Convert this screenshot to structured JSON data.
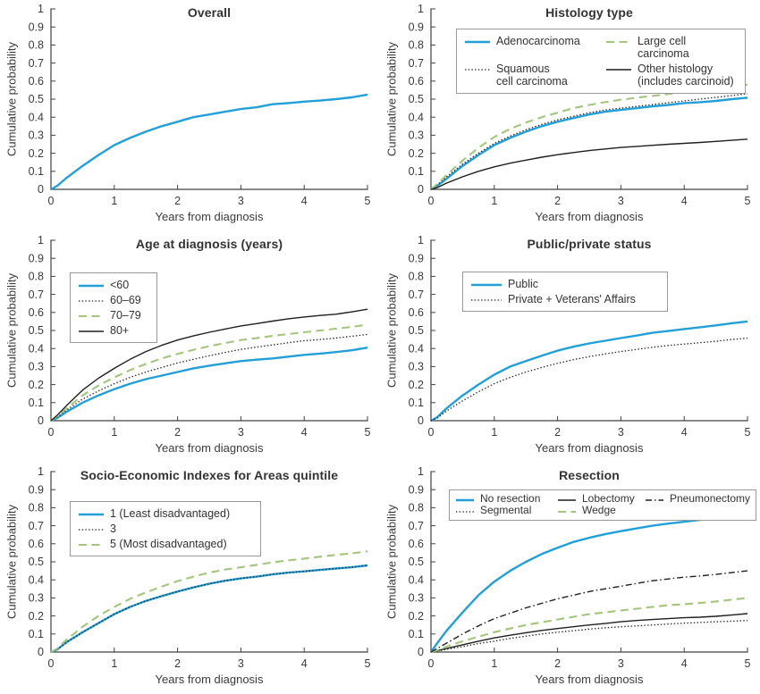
{
  "figure": {
    "background": "#ffffff",
    "text_color": "#3b3b3b",
    "axis_color": "#404040",
    "accent_blue": "#239fd8",
    "accent_green": "#a3c57e",
    "curve_black": "#1f1f1f"
  },
  "axes": {
    "xlabel": "Years from diagnosis",
    "ylabel": "Cumulative probability",
    "x_ticks": [
      0,
      1,
      2,
      3,
      4,
      5
    ],
    "y_ticks": [
      0,
      0.1,
      0.2,
      0.3,
      0.4,
      0.5,
      0.6,
      0.7,
      0.8,
      0.9,
      1
    ],
    "xlim": [
      0,
      5
    ],
    "ylim": [
      0,
      1
    ],
    "grid": "off",
    "tick_direction": "in"
  },
  "line_styles": {
    "solid_blue": {
      "color": "#239fd8",
      "width": 2.4,
      "dash": ""
    },
    "dotted_black": {
      "color": "#1f1f1f",
      "width": 1.3,
      "dash": "1.4 2.3"
    },
    "dashed_green": {
      "color": "#a3c57e",
      "width": 2.1,
      "dash": "9 5.5"
    },
    "solid_black": {
      "color": "#1f1f1f",
      "width": 1.4,
      "dash": ""
    },
    "dashdot_black": {
      "color": "#1f1f1f",
      "width": 1.4,
      "dash": "7 3 1.5 3"
    }
  },
  "chart_data": [
    {
      "type": "line",
      "title": "Overall",
      "xlabel": "Years from diagnosis",
      "ylabel": "Cumulative probability",
      "xlim": [
        0,
        5
      ],
      "ylim": [
        0,
        1
      ],
      "legend_position": "none",
      "x": [
        0,
        0.1,
        0.25,
        0.5,
        0.75,
        1,
        1.25,
        1.5,
        1.75,
        2,
        2.25,
        2.5,
        2.75,
        3,
        3.25,
        3.5,
        3.75,
        4,
        4.25,
        4.5,
        4.75,
        5
      ],
      "series": [
        {
          "name": "Overall",
          "style": "solid_blue",
          "values": [
            0,
            0.02,
            0.065,
            0.13,
            0.19,
            0.245,
            0.285,
            0.32,
            0.35,
            0.375,
            0.4,
            0.415,
            0.43,
            0.445,
            0.455,
            0.472,
            0.478,
            0.486,
            0.492,
            0.5,
            0.51,
            0.525
          ]
        }
      ],
      "legend_items": []
    },
    {
      "type": "line",
      "title": "Histology type",
      "xlabel": "Years from diagnosis",
      "ylabel": "Cumulative probability",
      "xlim": [
        0,
        5
      ],
      "ylim": [
        0,
        1
      ],
      "legend_position": "upper center, boxed, 2 columns",
      "x": [
        0,
        0.1,
        0.25,
        0.5,
        0.75,
        1,
        1.25,
        1.5,
        1.75,
        2,
        2.25,
        2.5,
        2.75,
        3,
        3.25,
        3.5,
        3.75,
        4,
        4.25,
        4.5,
        4.75,
        5
      ],
      "series": [
        {
          "name": "Adenocarcinoma",
          "style": "solid_blue",
          "values": [
            0,
            0.02,
            0.06,
            0.13,
            0.19,
            0.245,
            0.285,
            0.32,
            0.35,
            0.375,
            0.395,
            0.415,
            0.43,
            0.44,
            0.45,
            0.46,
            0.468,
            0.478,
            0.483,
            0.49,
            0.5,
            0.508
          ]
        },
        {
          "name": "Squamous cell carcinoma",
          "style": "dotted_black",
          "values": [
            0,
            0.025,
            0.07,
            0.14,
            0.2,
            0.255,
            0.295,
            0.33,
            0.36,
            0.385,
            0.405,
            0.425,
            0.44,
            0.45,
            0.46,
            0.47,
            0.48,
            0.49,
            0.5,
            0.51,
            0.52,
            0.53
          ]
        },
        {
          "name": "Large cell carcinoma",
          "style": "dashed_green",
          "values": [
            0,
            0.03,
            0.08,
            0.16,
            0.23,
            0.29,
            0.335,
            0.37,
            0.4,
            0.425,
            0.45,
            0.468,
            0.483,
            0.497,
            0.508,
            0.518,
            0.528,
            0.54,
            0.55,
            0.56,
            0.57,
            0.58
          ]
        },
        {
          "name": "Other histology (includes carcinoid)",
          "style": "solid_black",
          "values": [
            0,
            0.01,
            0.035,
            0.07,
            0.1,
            0.125,
            0.145,
            0.162,
            0.178,
            0.192,
            0.204,
            0.215,
            0.224,
            0.232,
            0.238,
            0.244,
            0.25,
            0.255,
            0.26,
            0.266,
            0.272,
            0.278
          ]
        }
      ],
      "legend_items": [
        {
          "label": "Adenocarcinoma",
          "style": "solid_blue"
        },
        {
          "label": "Large cell carcinoma",
          "style": "dashed_green"
        },
        {
          "label": "Squamous\ncell carcinoma",
          "style": "dotted_black"
        },
        {
          "label": "Other histology\n(includes carcinoid)",
          "style": "solid_black"
        }
      ]
    },
    {
      "type": "line",
      "title": "Age at diagnosis (years)",
      "xlabel": "Years from diagnosis",
      "ylabel": "Cumulative probability",
      "xlim": [
        0,
        5
      ],
      "ylim": [
        0,
        1
      ],
      "legend_position": "upper left, boxed, 1 column",
      "x": [
        0,
        0.1,
        0.25,
        0.5,
        0.75,
        1,
        1.25,
        1.5,
        1.75,
        2,
        2.25,
        2.5,
        2.75,
        3,
        3.25,
        3.5,
        3.75,
        4,
        4.25,
        4.5,
        4.75,
        5
      ],
      "series": [
        {
          "name": "<60",
          "style": "solid_blue",
          "values": [
            0,
            0.015,
            0.05,
            0.1,
            0.14,
            0.175,
            0.205,
            0.23,
            0.25,
            0.27,
            0.29,
            0.305,
            0.318,
            0.33,
            0.338,
            0.345,
            0.355,
            0.365,
            0.372,
            0.38,
            0.39,
            0.405
          ]
        },
        {
          "name": "60–69",
          "style": "dotted_black",
          "values": [
            0,
            0.02,
            0.06,
            0.12,
            0.165,
            0.205,
            0.24,
            0.27,
            0.295,
            0.32,
            0.34,
            0.36,
            0.378,
            0.395,
            0.408,
            0.42,
            0.432,
            0.443,
            0.45,
            0.458,
            0.468,
            0.478
          ]
        },
        {
          "name": "70–79",
          "style": "dashed_green",
          "values": [
            0,
            0.025,
            0.07,
            0.14,
            0.195,
            0.24,
            0.28,
            0.315,
            0.345,
            0.37,
            0.393,
            0.413,
            0.43,
            0.447,
            0.458,
            0.47,
            0.48,
            0.49,
            0.5,
            0.51,
            0.52,
            0.532
          ]
        },
        {
          "name": "80+",
          "style": "solid_black",
          "values": [
            0,
            0.03,
            0.085,
            0.17,
            0.235,
            0.29,
            0.34,
            0.383,
            0.418,
            0.447,
            0.47,
            0.49,
            0.508,
            0.525,
            0.538,
            0.552,
            0.565,
            0.575,
            0.583,
            0.59,
            0.603,
            0.618
          ]
        }
      ],
      "legend_items": [
        {
          "label": "<60",
          "style": "solid_blue"
        },
        {
          "label": "60–69",
          "style": "dotted_black"
        },
        {
          "label": "70–79",
          "style": "dashed_green"
        },
        {
          "label": "80+",
          "style": "solid_black"
        }
      ]
    },
    {
      "type": "line",
      "title": "Public/private status",
      "xlabel": "Years from diagnosis",
      "ylabel": "Cumulative probability",
      "xlim": [
        0,
        5
      ],
      "ylim": [
        0,
        1
      ],
      "legend_position": "upper left, boxed, 1 column",
      "x": [
        0,
        0.1,
        0.25,
        0.5,
        0.75,
        1,
        1.25,
        1.5,
        1.75,
        2,
        2.25,
        2.5,
        2.75,
        3,
        3.25,
        3.5,
        3.75,
        4,
        4.25,
        4.5,
        4.75,
        5
      ],
      "series": [
        {
          "name": "Public",
          "style": "solid_blue",
          "values": [
            0,
            0.02,
            0.07,
            0.14,
            0.2,
            0.255,
            0.3,
            0.33,
            0.36,
            0.388,
            0.41,
            0.428,
            0.443,
            0.458,
            0.472,
            0.487,
            0.497,
            0.508,
            0.518,
            0.528,
            0.54,
            0.55
          ]
        },
        {
          "name": "Private + Veterans' Affairs",
          "style": "dotted_black",
          "values": [
            0,
            0.015,
            0.055,
            0.11,
            0.16,
            0.205,
            0.24,
            0.27,
            0.295,
            0.318,
            0.338,
            0.355,
            0.37,
            0.383,
            0.395,
            0.407,
            0.417,
            0.425,
            0.432,
            0.44,
            0.45,
            0.458
          ]
        }
      ],
      "legend_items": [
        {
          "label": "Public",
          "style": "solid_blue"
        },
        {
          "label": "Private + Veterans' Affairs",
          "style": "dotted_black"
        }
      ]
    },
    {
      "type": "line",
      "title": "Socio-Economic Indexes for Areas quintile",
      "xlabel": "Years from diagnosis",
      "ylabel": "Cumulative probability",
      "xlim": [
        0,
        5
      ],
      "ylim": [
        0,
        1
      ],
      "legend_position": "upper left, boxed, 1 column",
      "x": [
        0,
        0.1,
        0.25,
        0.5,
        0.75,
        1,
        1.25,
        1.5,
        1.75,
        2,
        2.25,
        2.5,
        2.75,
        3,
        3.25,
        3.5,
        3.75,
        4,
        4.25,
        4.5,
        4.75,
        5
      ],
      "series": [
        {
          "name": "1 (Least disadvantaged)",
          "style": "solid_blue",
          "values": [
            0,
            0.015,
            0.055,
            0.11,
            0.16,
            0.21,
            0.25,
            0.283,
            0.31,
            0.335,
            0.358,
            0.378,
            0.395,
            0.408,
            0.418,
            0.43,
            0.44,
            0.447,
            0.455,
            0.463,
            0.47,
            0.48
          ]
        },
        {
          "name": "3",
          "style": "dotted_black",
          "values": [
            0,
            0.015,
            0.055,
            0.11,
            0.16,
            0.21,
            0.25,
            0.283,
            0.31,
            0.335,
            0.358,
            0.378,
            0.395,
            0.408,
            0.418,
            0.43,
            0.44,
            0.447,
            0.455,
            0.463,
            0.47,
            0.48
          ]
        },
        {
          "name": "5 (Most disadvantaged)",
          "style": "dashed_green",
          "values": [
            0,
            0.02,
            0.07,
            0.14,
            0.2,
            0.25,
            0.295,
            0.33,
            0.363,
            0.393,
            0.418,
            0.44,
            0.457,
            0.47,
            0.483,
            0.497,
            0.508,
            0.518,
            0.528,
            0.538,
            0.547,
            0.558
          ]
        }
      ],
      "legend_items": [
        {
          "label": "1 (Least disadvantaged)",
          "style": "solid_blue"
        },
        {
          "label": "3",
          "style": "dotted_black"
        },
        {
          "label": "5 (Most disadvantaged)",
          "style": "dashed_green"
        }
      ]
    },
    {
      "type": "line",
      "title": "Resection",
      "xlabel": "Years from diagnosis",
      "ylabel": "Cumulative probability",
      "xlim": [
        0,
        5
      ],
      "ylim": [
        0,
        1
      ],
      "legend_position": "upper center, boxed, 3 columns",
      "x": [
        0,
        0.1,
        0.25,
        0.5,
        0.75,
        1,
        1.25,
        1.5,
        1.75,
        2,
        2.25,
        2.5,
        2.75,
        3,
        3.25,
        3.5,
        3.75,
        4,
        4.25,
        4.5,
        4.75,
        5
      ],
      "series": [
        {
          "name": "No resection",
          "style": "solid_blue",
          "values": [
            0,
            0.05,
            0.12,
            0.22,
            0.315,
            0.39,
            0.45,
            0.5,
            0.543,
            0.578,
            0.61,
            0.633,
            0.653,
            0.67,
            0.685,
            0.7,
            0.712,
            0.722,
            0.732,
            0.74,
            0.748,
            0.755
          ]
        },
        {
          "name": "Segmental",
          "style": "dotted_black",
          "values": [
            0,
            0.006,
            0.015,
            0.03,
            0.047,
            0.06,
            0.075,
            0.088,
            0.1,
            0.11,
            0.118,
            0.127,
            0.134,
            0.14,
            0.145,
            0.15,
            0.155,
            0.16,
            0.164,
            0.168,
            0.171,
            0.175
          ]
        },
        {
          "name": "Lobectomy",
          "style": "solid_black",
          "values": [
            0,
            0.008,
            0.02,
            0.04,
            0.06,
            0.078,
            0.093,
            0.107,
            0.12,
            0.13,
            0.14,
            0.15,
            0.158,
            0.168,
            0.175,
            0.18,
            0.185,
            0.19,
            0.193,
            0.198,
            0.205,
            0.213
          ]
        },
        {
          "name": "Wedge",
          "style": "dashed_green",
          "values": [
            0,
            0.01,
            0.03,
            0.06,
            0.085,
            0.11,
            0.13,
            0.15,
            0.165,
            0.18,
            0.195,
            0.21,
            0.22,
            0.23,
            0.24,
            0.25,
            0.26,
            0.265,
            0.272,
            0.28,
            0.29,
            0.3
          ]
        },
        {
          "name": "Pneumonectomy",
          "style": "dashdot_black",
          "values": [
            0,
            0.02,
            0.05,
            0.1,
            0.145,
            0.185,
            0.215,
            0.245,
            0.27,
            0.295,
            0.315,
            0.335,
            0.35,
            0.365,
            0.38,
            0.395,
            0.405,
            0.415,
            0.422,
            0.43,
            0.44,
            0.45
          ]
        }
      ],
      "legend_items": [
        {
          "label": "No resection",
          "style": "solid_blue"
        },
        {
          "label": "Lobectomy",
          "style": "solid_black"
        },
        {
          "label": "Pneumonectomy",
          "style": "dashdot_black"
        },
        {
          "label": "Segmental",
          "style": "dotted_black"
        },
        {
          "label": "Wedge",
          "style": "dashed_green"
        }
      ]
    }
  ]
}
